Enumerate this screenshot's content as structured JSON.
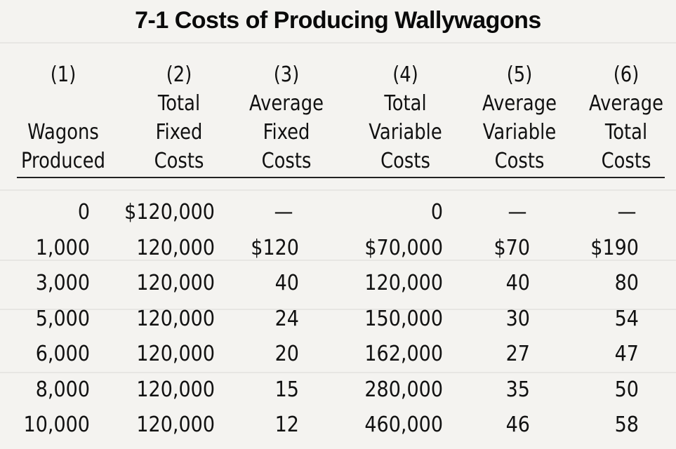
{
  "title": "7-1 Costs of Producing Wallywagons",
  "columns": [
    {
      "num": "(1)",
      "lines": [
        "Wagons",
        "Produced"
      ]
    },
    {
      "num": "(2)",
      "lines": [
        "Total",
        "Fixed",
        "Costs"
      ]
    },
    {
      "num": "(3)",
      "lines": [
        "Average",
        "Fixed",
        "Costs"
      ]
    },
    {
      "num": "(4)",
      "lines": [
        "Total",
        "Variable",
        "Costs"
      ]
    },
    {
      "num": "(5)",
      "lines": [
        "Average",
        "Variable",
        "Costs"
      ]
    },
    {
      "num": "(6)",
      "lines": [
        "Average",
        "Total",
        "Costs"
      ]
    }
  ],
  "rows": [
    [
      "0",
      "$120,000",
      "—",
      "0",
      "—",
      "—"
    ],
    [
      "1,000",
      "120,000",
      "$120",
      "$70,000",
      "$70",
      "$190"
    ],
    [
      "3,000",
      "120,000",
      "40",
      "120,000",
      "40",
      "80"
    ],
    [
      "5,000",
      "120,000",
      "24",
      "150,000",
      "30",
      "54"
    ],
    [
      "6,000",
      "120,000",
      "20",
      "162,000",
      "27",
      "47"
    ],
    [
      "8,000",
      "120,000",
      "15",
      "280,000",
      "35",
      "50"
    ],
    [
      "10,000",
      "120,000",
      "12",
      "460,000",
      "46",
      "58"
    ]
  ]
}
